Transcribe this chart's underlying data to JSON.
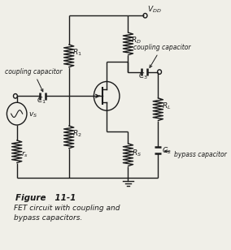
{
  "bg_color": "#f0efe8",
  "line_color": "#1a1a1a",
  "title_bold": "Figure   11-1",
  "title_line1": "FET circuit with coupling and",
  "title_line2": "bypass capacitors.",
  "VDD_label": "$V_{DD}$",
  "R1_label": "$R_1$",
  "R2_label": "$R_2$",
  "RD_label": "$R_D$",
  "RS_label": "$R_S$",
  "RL_label": "$R_L$",
  "C1_label": "$C_1$",
  "C2_label": "$C_2$",
  "C3_label": "$C_3$",
  "rs_label": "$r_s$",
  "vs_label": "$v_S$",
  "coupling_label": "coupling capacitor",
  "bypass_label": "bypass capacitor"
}
